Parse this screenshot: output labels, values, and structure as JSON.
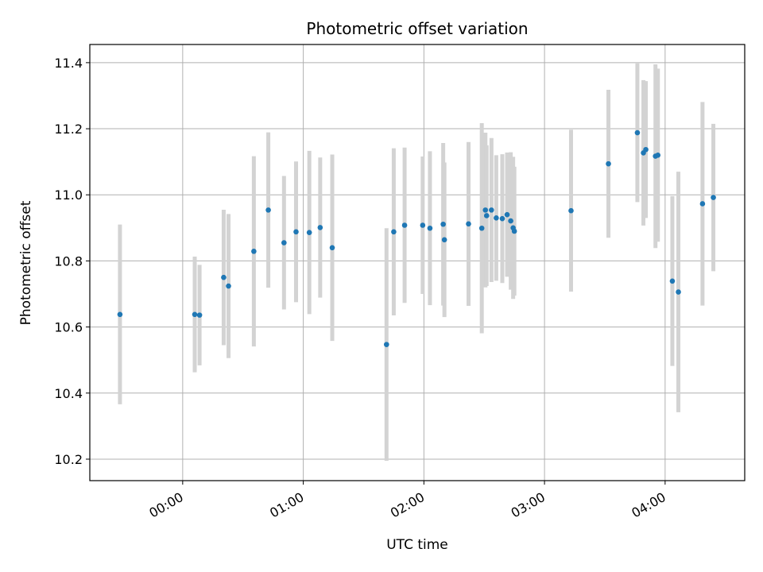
{
  "chart_data": {
    "type": "scatter",
    "title": "Photometric offset variation",
    "xlabel": "UTC time",
    "ylabel": "Photometric offset",
    "grid": true,
    "xlim_hours": [
      -0.77,
      4.66
    ],
    "ylim": [
      10.135,
      11.455
    ],
    "x_ticks": [
      {
        "value": 0,
        "label": "00:00"
      },
      {
        "value": 1,
        "label": "01:00"
      },
      {
        "value": 2,
        "label": "02:00"
      },
      {
        "value": 3,
        "label": "03:00"
      },
      {
        "value": 4,
        "label": "04:00"
      }
    ],
    "y_ticks": [
      10.2,
      10.4,
      10.6,
      10.8,
      11.0,
      11.2,
      11.4
    ],
    "y_tick_labels": [
      "10.2",
      "10.4",
      "10.6",
      "10.8",
      "11.0",
      "11.2",
      "11.4"
    ],
    "marker_color": "#1f77b4",
    "errorbar_color": "#d3d3d3",
    "x_unit": "hours since 00:00 UTC",
    "points": [
      {
        "x": -0.52,
        "y": 10.638,
        "err": 0.272
      },
      {
        "x": 0.1,
        "y": 10.638,
        "err": 0.175
      },
      {
        "x": 0.14,
        "y": 10.636,
        "err": 0.152
      },
      {
        "x": 0.34,
        "y": 10.75,
        "err": 0.205
      },
      {
        "x": 0.38,
        "y": 10.724,
        "err": 0.218
      },
      {
        "x": 0.59,
        "y": 10.829,
        "err": 0.288
      },
      {
        "x": 0.71,
        "y": 10.954,
        "err": 0.235
      },
      {
        "x": 0.84,
        "y": 10.855,
        "err": 0.202
      },
      {
        "x": 0.94,
        "y": 10.888,
        "err": 0.213
      },
      {
        "x": 1.05,
        "y": 10.886,
        "err": 0.247
      },
      {
        "x": 1.14,
        "y": 10.901,
        "err": 0.212
      },
      {
        "x": 1.24,
        "y": 10.84,
        "err": 0.282
      },
      {
        "x": 1.69,
        "y": 10.547,
        "err": 0.352
      },
      {
        "x": 1.75,
        "y": 10.888,
        "err": 0.253
      },
      {
        "x": 1.84,
        "y": 10.908,
        "err": 0.235
      },
      {
        "x": 1.99,
        "y": 10.908,
        "err": 0.208
      },
      {
        "x": 2.05,
        "y": 10.899,
        "err": 0.233
      },
      {
        "x": 2.16,
        "y": 10.911,
        "err": 0.246
      },
      {
        "x": 2.17,
        "y": 10.864,
        "err": 0.234
      },
      {
        "x": 2.37,
        "y": 10.912,
        "err": 0.248
      },
      {
        "x": 2.48,
        "y": 10.899,
        "err": 0.318
      },
      {
        "x": 2.51,
        "y": 10.954,
        "err": 0.234
      },
      {
        "x": 2.52,
        "y": 10.937,
        "err": 0.213
      },
      {
        "x": 2.56,
        "y": 10.954,
        "err": 0.218
      },
      {
        "x": 2.6,
        "y": 10.93,
        "err": 0.19
      },
      {
        "x": 2.65,
        "y": 10.928,
        "err": 0.195
      },
      {
        "x": 2.69,
        "y": 10.94,
        "err": 0.188
      },
      {
        "x": 2.72,
        "y": 10.921,
        "err": 0.208
      },
      {
        "x": 2.74,
        "y": 10.9,
        "err": 0.215
      },
      {
        "x": 2.75,
        "y": 10.89,
        "err": 0.195
      },
      {
        "x": 3.22,
        "y": 10.952,
        "err": 0.245
      },
      {
        "x": 3.53,
        "y": 11.094,
        "err": 0.224
      },
      {
        "x": 3.77,
        "y": 11.188,
        "err": 0.21
      },
      {
        "x": 3.82,
        "y": 11.127,
        "err": 0.22
      },
      {
        "x": 3.84,
        "y": 11.137,
        "err": 0.207
      },
      {
        "x": 3.92,
        "y": 11.117,
        "err": 0.278
      },
      {
        "x": 3.94,
        "y": 11.12,
        "err": 0.262
      },
      {
        "x": 4.06,
        "y": 10.739,
        "err": 0.257
      },
      {
        "x": 4.11,
        "y": 10.706,
        "err": 0.364
      },
      {
        "x": 4.31,
        "y": 10.973,
        "err": 0.308
      },
      {
        "x": 4.4,
        "y": 10.992,
        "err": 0.223
      }
    ]
  }
}
